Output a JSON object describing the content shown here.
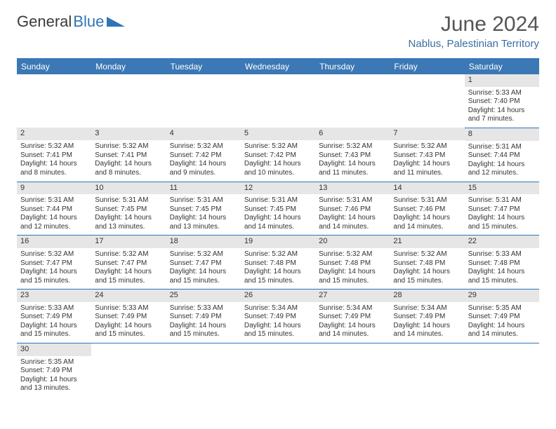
{
  "logo": {
    "text1": "General",
    "text2": "Blue"
  },
  "title": "June 2024",
  "subtitle": "Nablus, Palestinian Territory",
  "colors": {
    "header_bg": "#3b78b5",
    "header_text": "#ffffff",
    "accent": "#2e75b6",
    "daynum_bg": "#e6e6e6",
    "body_text": "#333333",
    "subtitle": "#3b6fa0",
    "background": "#ffffff"
  },
  "days_of_week": [
    "Sunday",
    "Monday",
    "Tuesday",
    "Wednesday",
    "Thursday",
    "Friday",
    "Saturday"
  ],
  "weeks": [
    [
      null,
      null,
      null,
      null,
      null,
      null,
      {
        "n": "1",
        "sunrise": "5:33 AM",
        "sunset": "7:40 PM",
        "daylight": "14 hours and 7 minutes."
      }
    ],
    [
      {
        "n": "2",
        "sunrise": "5:32 AM",
        "sunset": "7:41 PM",
        "daylight": "14 hours and 8 minutes."
      },
      {
        "n": "3",
        "sunrise": "5:32 AM",
        "sunset": "7:41 PM",
        "daylight": "14 hours and 8 minutes."
      },
      {
        "n": "4",
        "sunrise": "5:32 AM",
        "sunset": "7:42 PM",
        "daylight": "14 hours and 9 minutes."
      },
      {
        "n": "5",
        "sunrise": "5:32 AM",
        "sunset": "7:42 PM",
        "daylight": "14 hours and 10 minutes."
      },
      {
        "n": "6",
        "sunrise": "5:32 AM",
        "sunset": "7:43 PM",
        "daylight": "14 hours and 11 minutes."
      },
      {
        "n": "7",
        "sunrise": "5:32 AM",
        "sunset": "7:43 PM",
        "daylight": "14 hours and 11 minutes."
      },
      {
        "n": "8",
        "sunrise": "5:31 AM",
        "sunset": "7:44 PM",
        "daylight": "14 hours and 12 minutes."
      }
    ],
    [
      {
        "n": "9",
        "sunrise": "5:31 AM",
        "sunset": "7:44 PM",
        "daylight": "14 hours and 12 minutes."
      },
      {
        "n": "10",
        "sunrise": "5:31 AM",
        "sunset": "7:45 PM",
        "daylight": "14 hours and 13 minutes."
      },
      {
        "n": "11",
        "sunrise": "5:31 AM",
        "sunset": "7:45 PM",
        "daylight": "14 hours and 13 minutes."
      },
      {
        "n": "12",
        "sunrise": "5:31 AM",
        "sunset": "7:45 PM",
        "daylight": "14 hours and 14 minutes."
      },
      {
        "n": "13",
        "sunrise": "5:31 AM",
        "sunset": "7:46 PM",
        "daylight": "14 hours and 14 minutes."
      },
      {
        "n": "14",
        "sunrise": "5:31 AM",
        "sunset": "7:46 PM",
        "daylight": "14 hours and 14 minutes."
      },
      {
        "n": "15",
        "sunrise": "5:31 AM",
        "sunset": "7:47 PM",
        "daylight": "14 hours and 15 minutes."
      }
    ],
    [
      {
        "n": "16",
        "sunrise": "5:32 AM",
        "sunset": "7:47 PM",
        "daylight": "14 hours and 15 minutes."
      },
      {
        "n": "17",
        "sunrise": "5:32 AM",
        "sunset": "7:47 PM",
        "daylight": "14 hours and 15 minutes."
      },
      {
        "n": "18",
        "sunrise": "5:32 AM",
        "sunset": "7:47 PM",
        "daylight": "14 hours and 15 minutes."
      },
      {
        "n": "19",
        "sunrise": "5:32 AM",
        "sunset": "7:48 PM",
        "daylight": "14 hours and 15 minutes."
      },
      {
        "n": "20",
        "sunrise": "5:32 AM",
        "sunset": "7:48 PM",
        "daylight": "14 hours and 15 minutes."
      },
      {
        "n": "21",
        "sunrise": "5:32 AM",
        "sunset": "7:48 PM",
        "daylight": "14 hours and 15 minutes."
      },
      {
        "n": "22",
        "sunrise": "5:33 AM",
        "sunset": "7:48 PM",
        "daylight": "14 hours and 15 minutes."
      }
    ],
    [
      {
        "n": "23",
        "sunrise": "5:33 AM",
        "sunset": "7:49 PM",
        "daylight": "14 hours and 15 minutes."
      },
      {
        "n": "24",
        "sunrise": "5:33 AM",
        "sunset": "7:49 PM",
        "daylight": "14 hours and 15 minutes."
      },
      {
        "n": "25",
        "sunrise": "5:33 AM",
        "sunset": "7:49 PM",
        "daylight": "14 hours and 15 minutes."
      },
      {
        "n": "26",
        "sunrise": "5:34 AM",
        "sunset": "7:49 PM",
        "daylight": "14 hours and 15 minutes."
      },
      {
        "n": "27",
        "sunrise": "5:34 AM",
        "sunset": "7:49 PM",
        "daylight": "14 hours and 14 minutes."
      },
      {
        "n": "28",
        "sunrise": "5:34 AM",
        "sunset": "7:49 PM",
        "daylight": "14 hours and 14 minutes."
      },
      {
        "n": "29",
        "sunrise": "5:35 AM",
        "sunset": "7:49 PM",
        "daylight": "14 hours and 14 minutes."
      }
    ],
    [
      {
        "n": "30",
        "sunrise": "5:35 AM",
        "sunset": "7:49 PM",
        "daylight": "14 hours and 13 minutes."
      },
      null,
      null,
      null,
      null,
      null,
      null
    ]
  ],
  "labels": {
    "sunrise": "Sunrise:",
    "sunset": "Sunset:",
    "daylight": "Daylight:"
  }
}
